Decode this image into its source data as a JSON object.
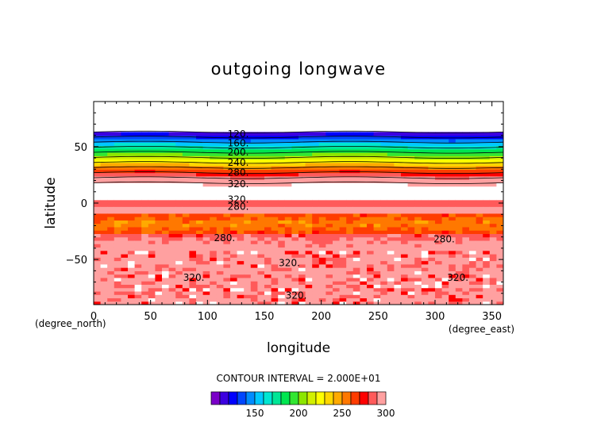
{
  "chart_data": {
    "type": "heatmap",
    "title": "outgoing longwave",
    "xlabel": "longitude",
    "ylabel": "latitude",
    "x_units": "(degree_east)",
    "y_units": "(degree_north)",
    "xlim": [
      0,
      360
    ],
    "ylim": [
      -90,
      90
    ],
    "y_plot_range": [
      -90,
      90
    ],
    "x_ticks": [
      0,
      50,
      100,
      150,
      200,
      250,
      300,
      350
    ],
    "x_tick_labels": [
      "0",
      "50",
      "100",
      "150",
      "200",
      "250",
      "300",
      "350"
    ],
    "y_ticks": [
      50,
      0,
      -50
    ],
    "y_tick_labels": [
      "50",
      "0",
      "−50"
    ],
    "contour_interval_text": "CONTOUR INTERVAL = 2.000E+01",
    "missing_above_latitude": 63,
    "contour_labels": [
      {
        "text": "120.",
        "lon": 127,
        "lat": 61
      },
      {
        "text": "160.",
        "lon": 127,
        "lat": 53
      },
      {
        "text": "200.",
        "lon": 127,
        "lat": 45
      },
      {
        "text": "240.",
        "lon": 127,
        "lat": 36
      },
      {
        "text": "280.",
        "lon": 127,
        "lat": 27
      },
      {
        "text": "320.",
        "lon": 127,
        "lat": 17
      },
      {
        "text": "320.",
        "lon": 127,
        "lat": 3
      },
      {
        "text": "280.",
        "lon": 127,
        "lat": -3
      },
      {
        "text": "280.",
        "lon": 115,
        "lat": -31
      },
      {
        "text": "280.",
        "lon": 308,
        "lat": -32
      },
      {
        "text": "320.",
        "lon": 172,
        "lat": -53
      },
      {
        "text": "320.",
        "lon": 88,
        "lat": -66
      },
      {
        "text": "320.",
        "lon": 320,
        "lat": -66
      },
      {
        "text": "320.",
        "lon": 178,
        "lat": -82
      }
    ],
    "colorbar": {
      "ticks": [
        150,
        200,
        250,
        300
      ],
      "tick_labels": [
        "150",
        "200",
        "250",
        "300"
      ],
      "colors": [
        "#7a00c8",
        "#3c00e0",
        "#0000ff",
        "#0046ff",
        "#008cff",
        "#00c8ff",
        "#00e6d2",
        "#00e696",
        "#00e650",
        "#32e632",
        "#8ce600",
        "#d2f000",
        "#ffff00",
        "#ffd700",
        "#ffaa00",
        "#ff7800",
        "#ff3c00",
        "#ff0000",
        "#ff5a5a",
        "#ffa0a0"
      ]
    }
  }
}
